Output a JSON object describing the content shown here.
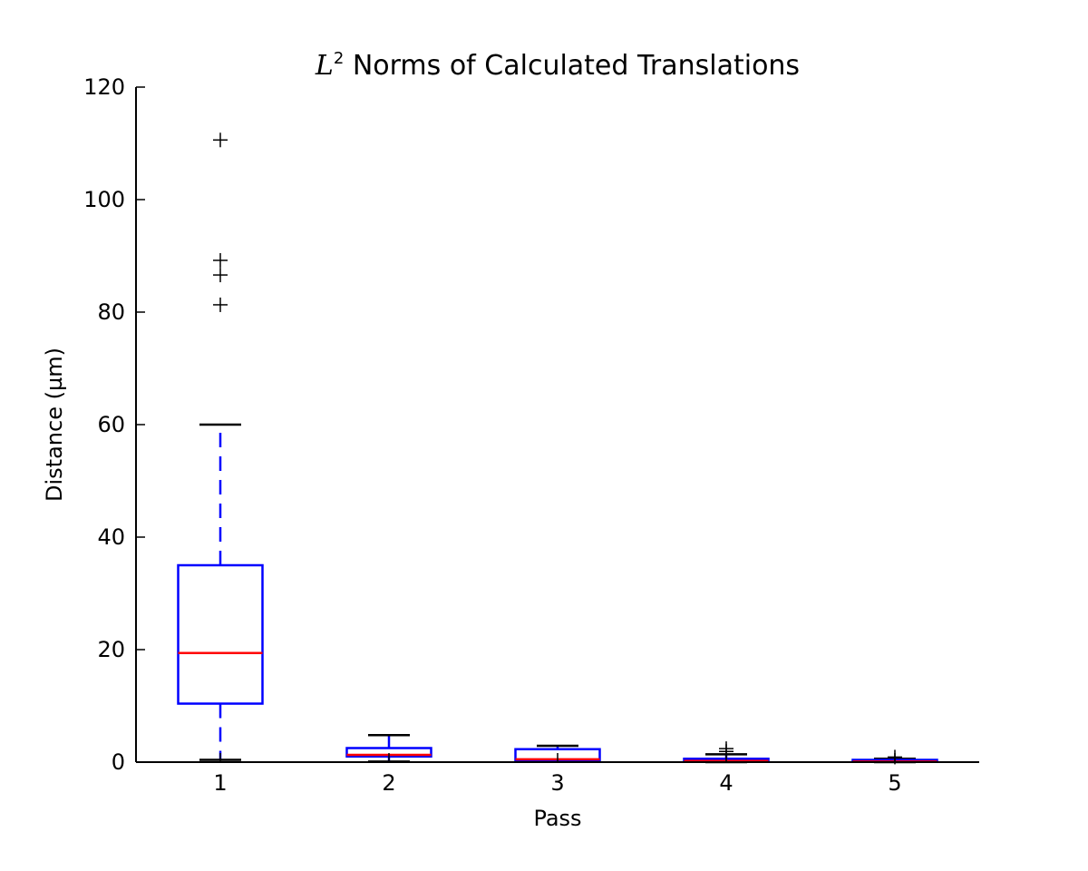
{
  "chart_data": {
    "type": "boxplot",
    "title": {
      "math_base": "L",
      "math_sup": "2",
      "text": " Norms of Calculated Translations"
    },
    "xlabel": "Pass",
    "ylabel": "Distance (µm)",
    "ylim": [
      0,
      120
    ],
    "yticks": [
      "0",
      "20",
      "40",
      "60",
      "80",
      "100",
      "120"
    ],
    "grid": false,
    "categories": [
      "1",
      "2",
      "3",
      "4",
      "5"
    ],
    "boxes": [
      {
        "label": "1",
        "whisker_low": 0.4,
        "q1": 10.4,
        "median": 19.4,
        "q3": 35.0,
        "whisker_high": 60.0,
        "outliers": [
          81.3,
          86.6,
          89.2,
          110.6
        ]
      },
      {
        "label": "2",
        "whisker_low": 0.1,
        "q1": 1.0,
        "median": 1.3,
        "q3": 2.5,
        "whisker_high": 4.8,
        "outliers": []
      },
      {
        "label": "3",
        "whisker_low": 0.05,
        "q1": 0.2,
        "median": 0.5,
        "q3": 2.3,
        "whisker_high": 2.9,
        "outliers": []
      },
      {
        "label": "4",
        "whisker_low": 0.0,
        "q1": 0.05,
        "median": 0.2,
        "q3": 0.6,
        "whisker_high": 1.4,
        "outliers": [
          1.9,
          2.4
        ]
      },
      {
        "label": "5",
        "whisker_low": 0.0,
        "q1": 0.05,
        "median": 0.1,
        "q3": 0.4,
        "whisker_high": 0.6,
        "outliers": [
          0.9
        ]
      }
    ],
    "colors": {
      "box": "#0000ff",
      "median": "#ff0000",
      "cap": "#000000",
      "outlier": "#000000",
      "axis": "#000000"
    }
  }
}
